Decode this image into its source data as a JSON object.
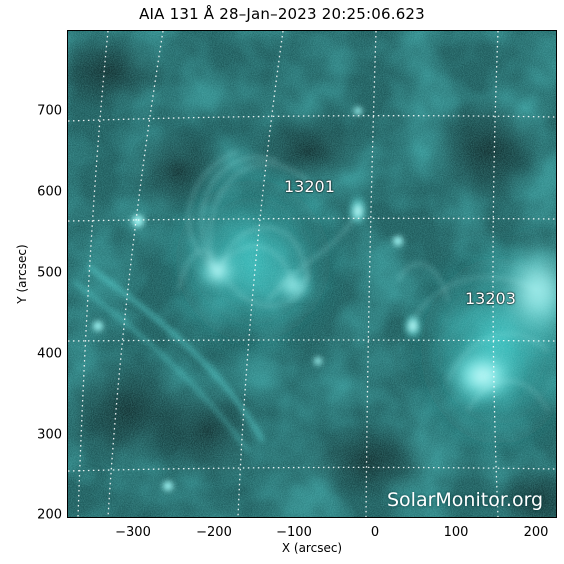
{
  "title": "AIA 131 Å 28–Jan–2023 20:25:06.623",
  "axes": {
    "xlabel": "X (arcsec)",
    "ylabel": "Y (arcsec)",
    "xticks": [
      "−300",
      "−200",
      "−100",
      "0",
      "100",
      "200"
    ],
    "yticks": [
      "200",
      "300",
      "400",
      "500",
      "600",
      "700"
    ]
  },
  "active_regions": [
    "13201",
    "13203"
  ],
  "watermark": "SolarMonitor.org",
  "colors": {
    "background": "#0d3335",
    "emission": "#3fd8d6",
    "bright": "#e8ffff",
    "grid": "#ffffff"
  }
}
